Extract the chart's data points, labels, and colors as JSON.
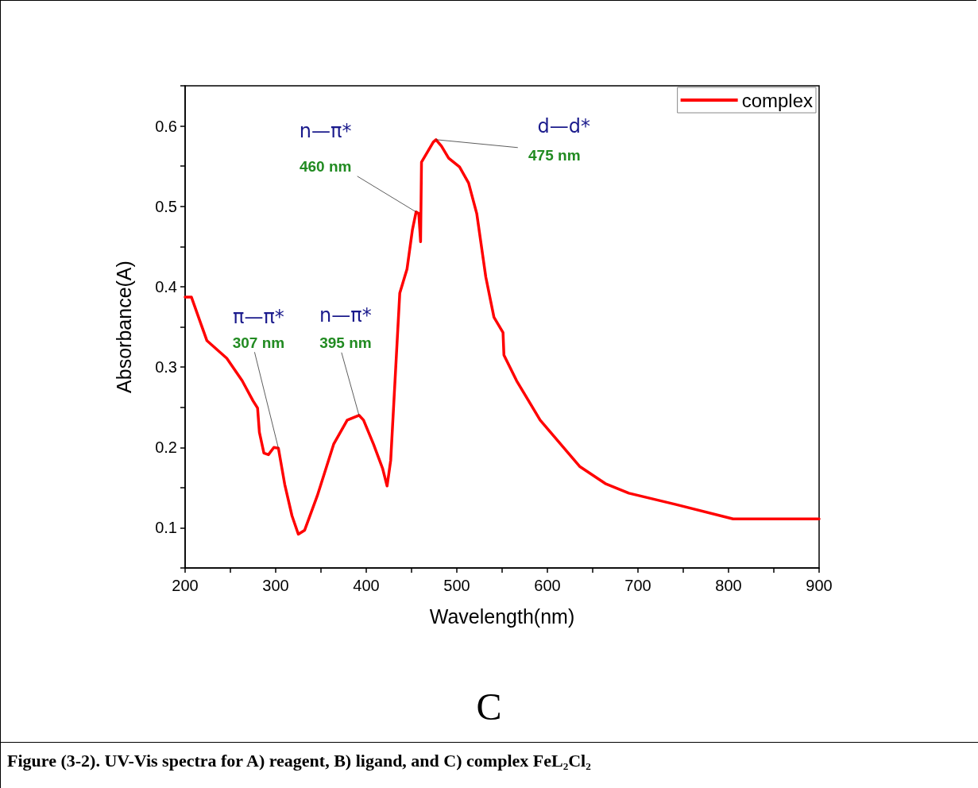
{
  "chart_data": {
    "type": "line",
    "xlabel": "Wavelength(nm)",
    "ylabel": "Absorbance(A)",
    "xlim": [
      200,
      900
    ],
    "xticks": [
      200,
      300,
      400,
      500,
      600,
      700,
      800,
      900
    ],
    "ylim": [
      0.05,
      0.65
    ],
    "yticks": [
      0.1,
      0.2,
      0.3,
      0.4,
      0.5,
      0.6
    ],
    "grid": false,
    "legend": "top right",
    "marker": "none",
    "line_style": "solid",
    "series": [
      {
        "name": "complex",
        "color": "#ff0000",
        "x": [
          200,
          207,
          224,
          246,
          263,
          275,
          280,
          282,
          287,
          292,
          298,
          303,
          310,
          318,
          325,
          332,
          346,
          364,
          379,
          392,
          397,
          408,
          418,
          423,
          427,
          437,
          445,
          451,
          455,
          458,
          460,
          461,
          474,
          477,
          483,
          491,
          503,
          513,
          522,
          532,
          541,
          551,
          552,
          566,
          592,
          636,
          664,
          690,
          742,
          805,
          900
        ],
        "values": [
          0.387,
          0.387,
          0.333,
          0.311,
          0.283,
          0.258,
          0.249,
          0.219,
          0.193,
          0.191,
          0.2,
          0.199,
          0.154,
          0.115,
          0.092,
          0.097,
          0.14,
          0.204,
          0.234,
          0.24,
          0.234,
          0.204,
          0.174,
          0.152,
          0.184,
          0.392,
          0.422,
          0.471,
          0.493,
          0.491,
          0.456,
          0.555,
          0.58,
          0.583,
          0.575,
          0.56,
          0.549,
          0.529,
          0.491,
          0.412,
          0.362,
          0.343,
          0.315,
          0.283,
          0.234,
          0.176,
          0.155,
          0.143,
          0.129,
          0.111,
          0.111
        ]
      }
    ],
    "annotations": [
      {
        "text": "307 nm",
        "x": 303,
        "y": 0.199
      },
      {
        "text": "395 nm",
        "x": 392,
        "y": 0.24
      },
      {
        "text": "460 nm",
        "x": 455,
        "y": 0.493
      },
      {
        "text": "475 nm",
        "x": 477,
        "y": 0.583
      },
      "π—π*",
      "n—π*",
      "n—π*",
      "d—d*",
      "C",
      "Figure (3-2). UV-Vis spectra for A) reagent, B) ligand, and C) complex FeL₂Cl₂"
    ]
  }
}
